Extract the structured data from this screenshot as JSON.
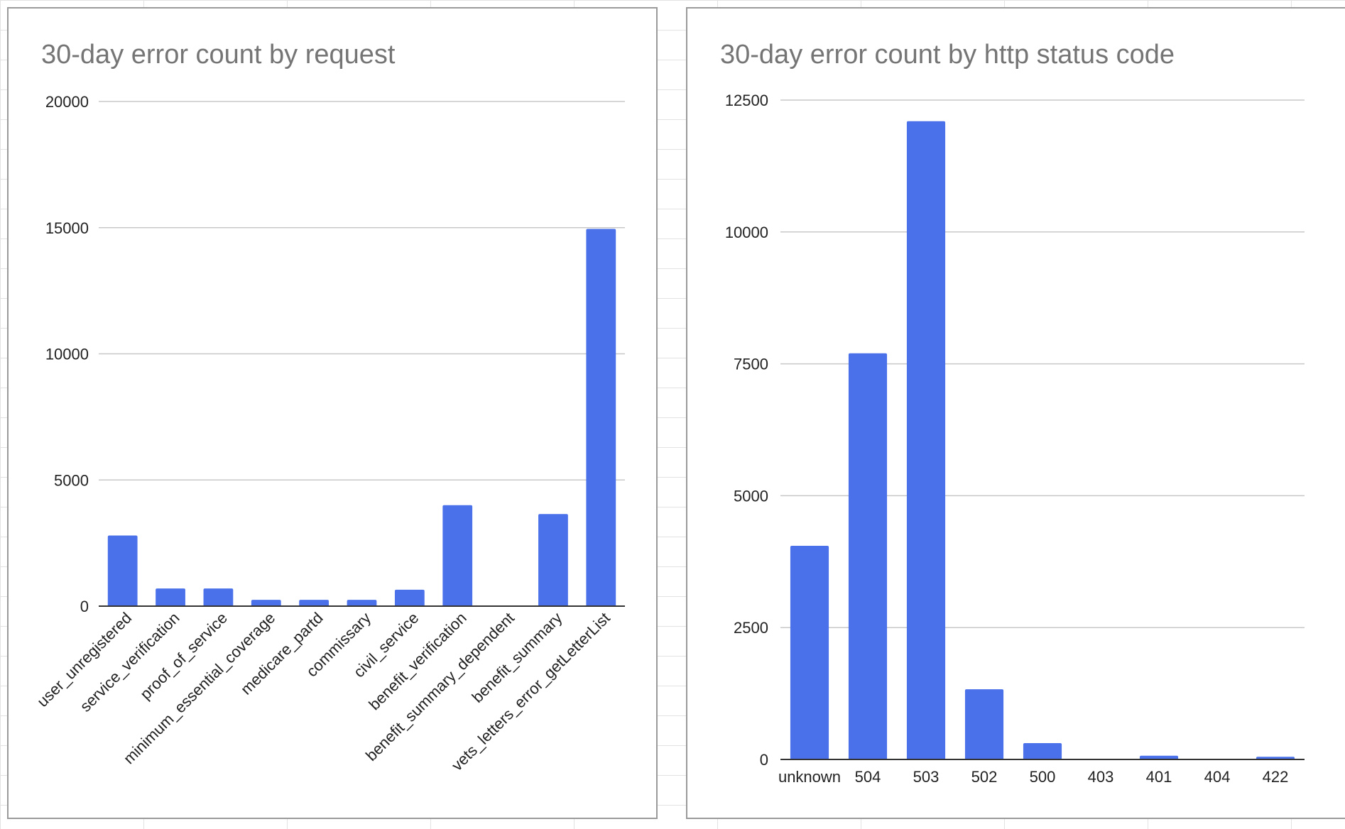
{
  "chart_data": [
    {
      "type": "bar",
      "title": "30-day error count by request",
      "categories": [
        "user_unregistered",
        "service_verification",
        "proof_of_service",
        "minimum_essential_coverage",
        "medicare_partd",
        "commissary",
        "civil_service",
        "benefit_verification",
        "benefit_summary_dependent",
        "benefit_summary",
        "vets_letters_error_getLetterList"
      ],
      "values": [
        2800,
        700,
        700,
        250,
        250,
        250,
        650,
        4000,
        20,
        3650,
        14950
      ],
      "ylim": [
        0,
        20000
      ],
      "yticks": [
        "0",
        "5000",
        "10000",
        "15000",
        "20000"
      ],
      "ytick_values": [
        0,
        5000,
        10000,
        15000,
        20000
      ],
      "xlabel": "",
      "ylabel": "",
      "grid": true,
      "legend": "none",
      "bar_color": "#4a70ea"
    },
    {
      "type": "bar",
      "title": "30-day error count by http status code",
      "categories": [
        "unknown",
        "504",
        "503",
        "502",
        "500",
        "403",
        "401",
        "404",
        "422"
      ],
      "values": [
        4050,
        7700,
        12100,
        1330,
        310,
        8,
        70,
        8,
        50
      ],
      "ylim": [
        0,
        12500
      ],
      "yticks": [
        "0",
        "2500",
        "5000",
        "7500",
        "10000",
        "12500"
      ],
      "ytick_values": [
        0,
        2500,
        5000,
        7500,
        10000,
        12500
      ],
      "xlabel": "",
      "ylabel": "",
      "grid": true,
      "legend": "none",
      "bar_color": "#4a70ea"
    }
  ]
}
